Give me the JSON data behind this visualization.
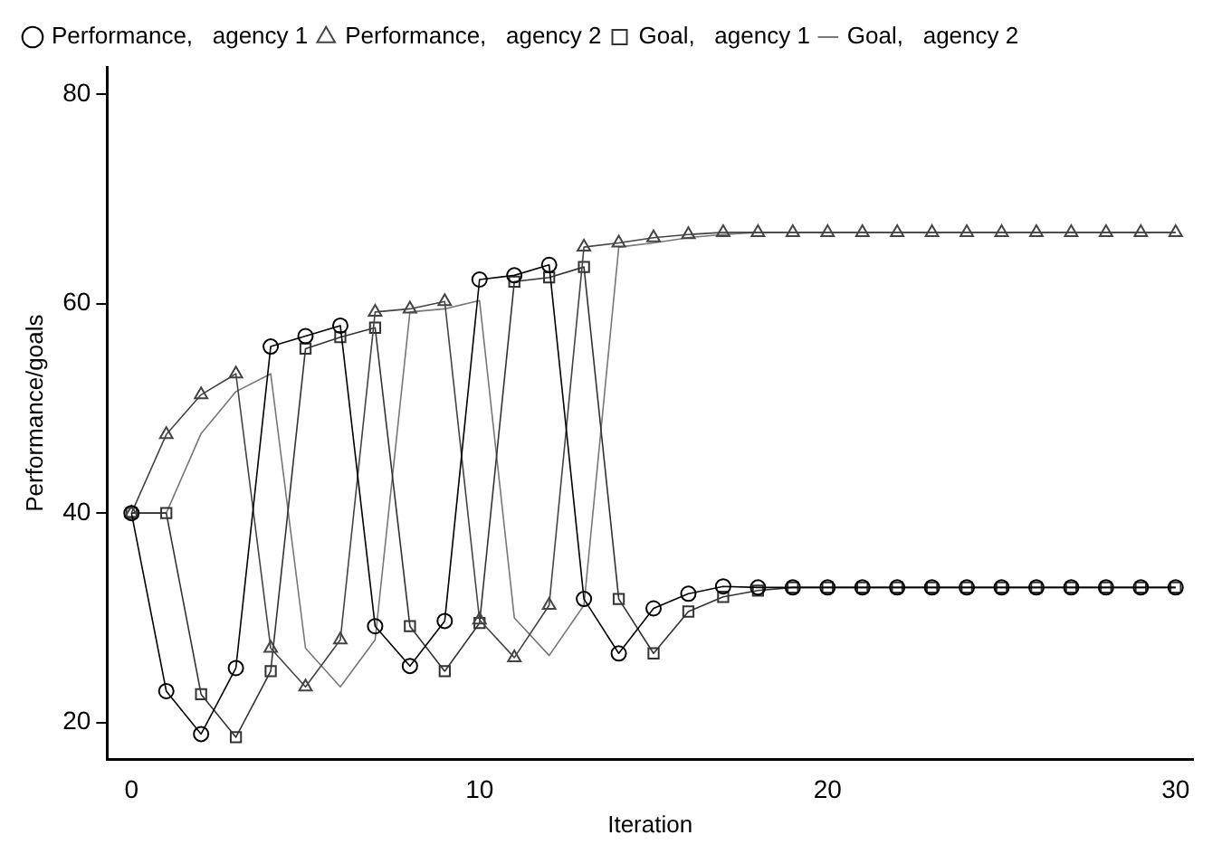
{
  "chart_data": {
    "type": "line",
    "xlabel": "Iteration",
    "ylabel": "Performance/goals",
    "x": [
      0,
      1,
      2,
      3,
      4,
      5,
      6,
      7,
      8,
      9,
      10,
      11,
      12,
      13,
      14,
      15,
      16,
      17,
      18,
      19,
      20,
      21,
      22,
      23,
      24,
      25,
      26,
      27,
      28,
      29,
      30
    ],
    "series": [
      {
        "name": "Performance,   agency 1",
        "color": "#000000",
        "marker": "circle",
        "values": [
          40,
          23,
          18.9,
          25.2,
          55.9,
          56.9,
          57.9,
          29.2,
          25.4,
          29.7,
          62.3,
          62.7,
          63.7,
          31.8,
          26.6,
          30.9,
          32.3,
          33,
          32.9,
          32.9,
          32.9,
          32.9,
          32.9,
          32.9,
          32.9,
          32.9,
          32.9,
          32.9,
          32.9,
          32.9,
          32.9
        ]
      },
      {
        "name": "Performance,   agency 2",
        "color": "#444444",
        "marker": "triangle",
        "values": [
          40,
          47.5,
          51.3,
          53.3,
          27.1,
          23.4,
          27.9,
          59.2,
          59.5,
          60.2,
          29.8,
          26.2,
          31.2,
          65.4,
          65.8,
          66.3,
          66.6,
          66.8,
          66.8,
          66.8,
          66.8,
          66.8,
          66.8,
          66.8,
          66.8,
          66.8,
          66.8,
          66.8,
          66.8,
          66.8,
          66.8
        ]
      },
      {
        "name": "Goal,   agency 1",
        "color": "#333333",
        "marker": "square",
        "values": [
          40,
          40,
          22.7,
          18.6,
          24.9,
          55.7,
          56.8,
          57.7,
          29.2,
          24.9,
          29.5,
          62.1,
          62.5,
          63.5,
          31.8,
          26.6,
          30.6,
          32,
          32.6,
          32.9,
          32.9,
          32.9,
          32.9,
          32.9,
          32.9,
          32.9,
          32.9,
          32.9,
          32.9,
          32.9,
          32.9
        ]
      },
      {
        "name": "Goal,   agency 2",
        "color": "#777777",
        "marker": "none",
        "values": [
          40,
          40,
          47.6,
          51.6,
          53.3,
          27.1,
          23.4,
          27.9,
          59.2,
          59.5,
          60.3,
          30,
          26.4,
          31.2,
          65.4,
          65.8,
          66.3,
          66.6,
          66.8,
          66.8,
          66.8,
          66.8,
          66.8,
          66.8,
          66.8,
          66.8,
          66.8,
          66.8,
          66.8,
          66.8,
          66.8
        ]
      }
    ],
    "xlim": [
      -0.7,
      30.5
    ],
    "xticks": [
      0,
      10,
      20,
      30
    ],
    "ylim": [
      16.5,
      82.6
    ],
    "yticks": [
      20,
      40,
      60,
      80
    ],
    "grid": false,
    "legend": "top",
    "line_style": "solid"
  }
}
